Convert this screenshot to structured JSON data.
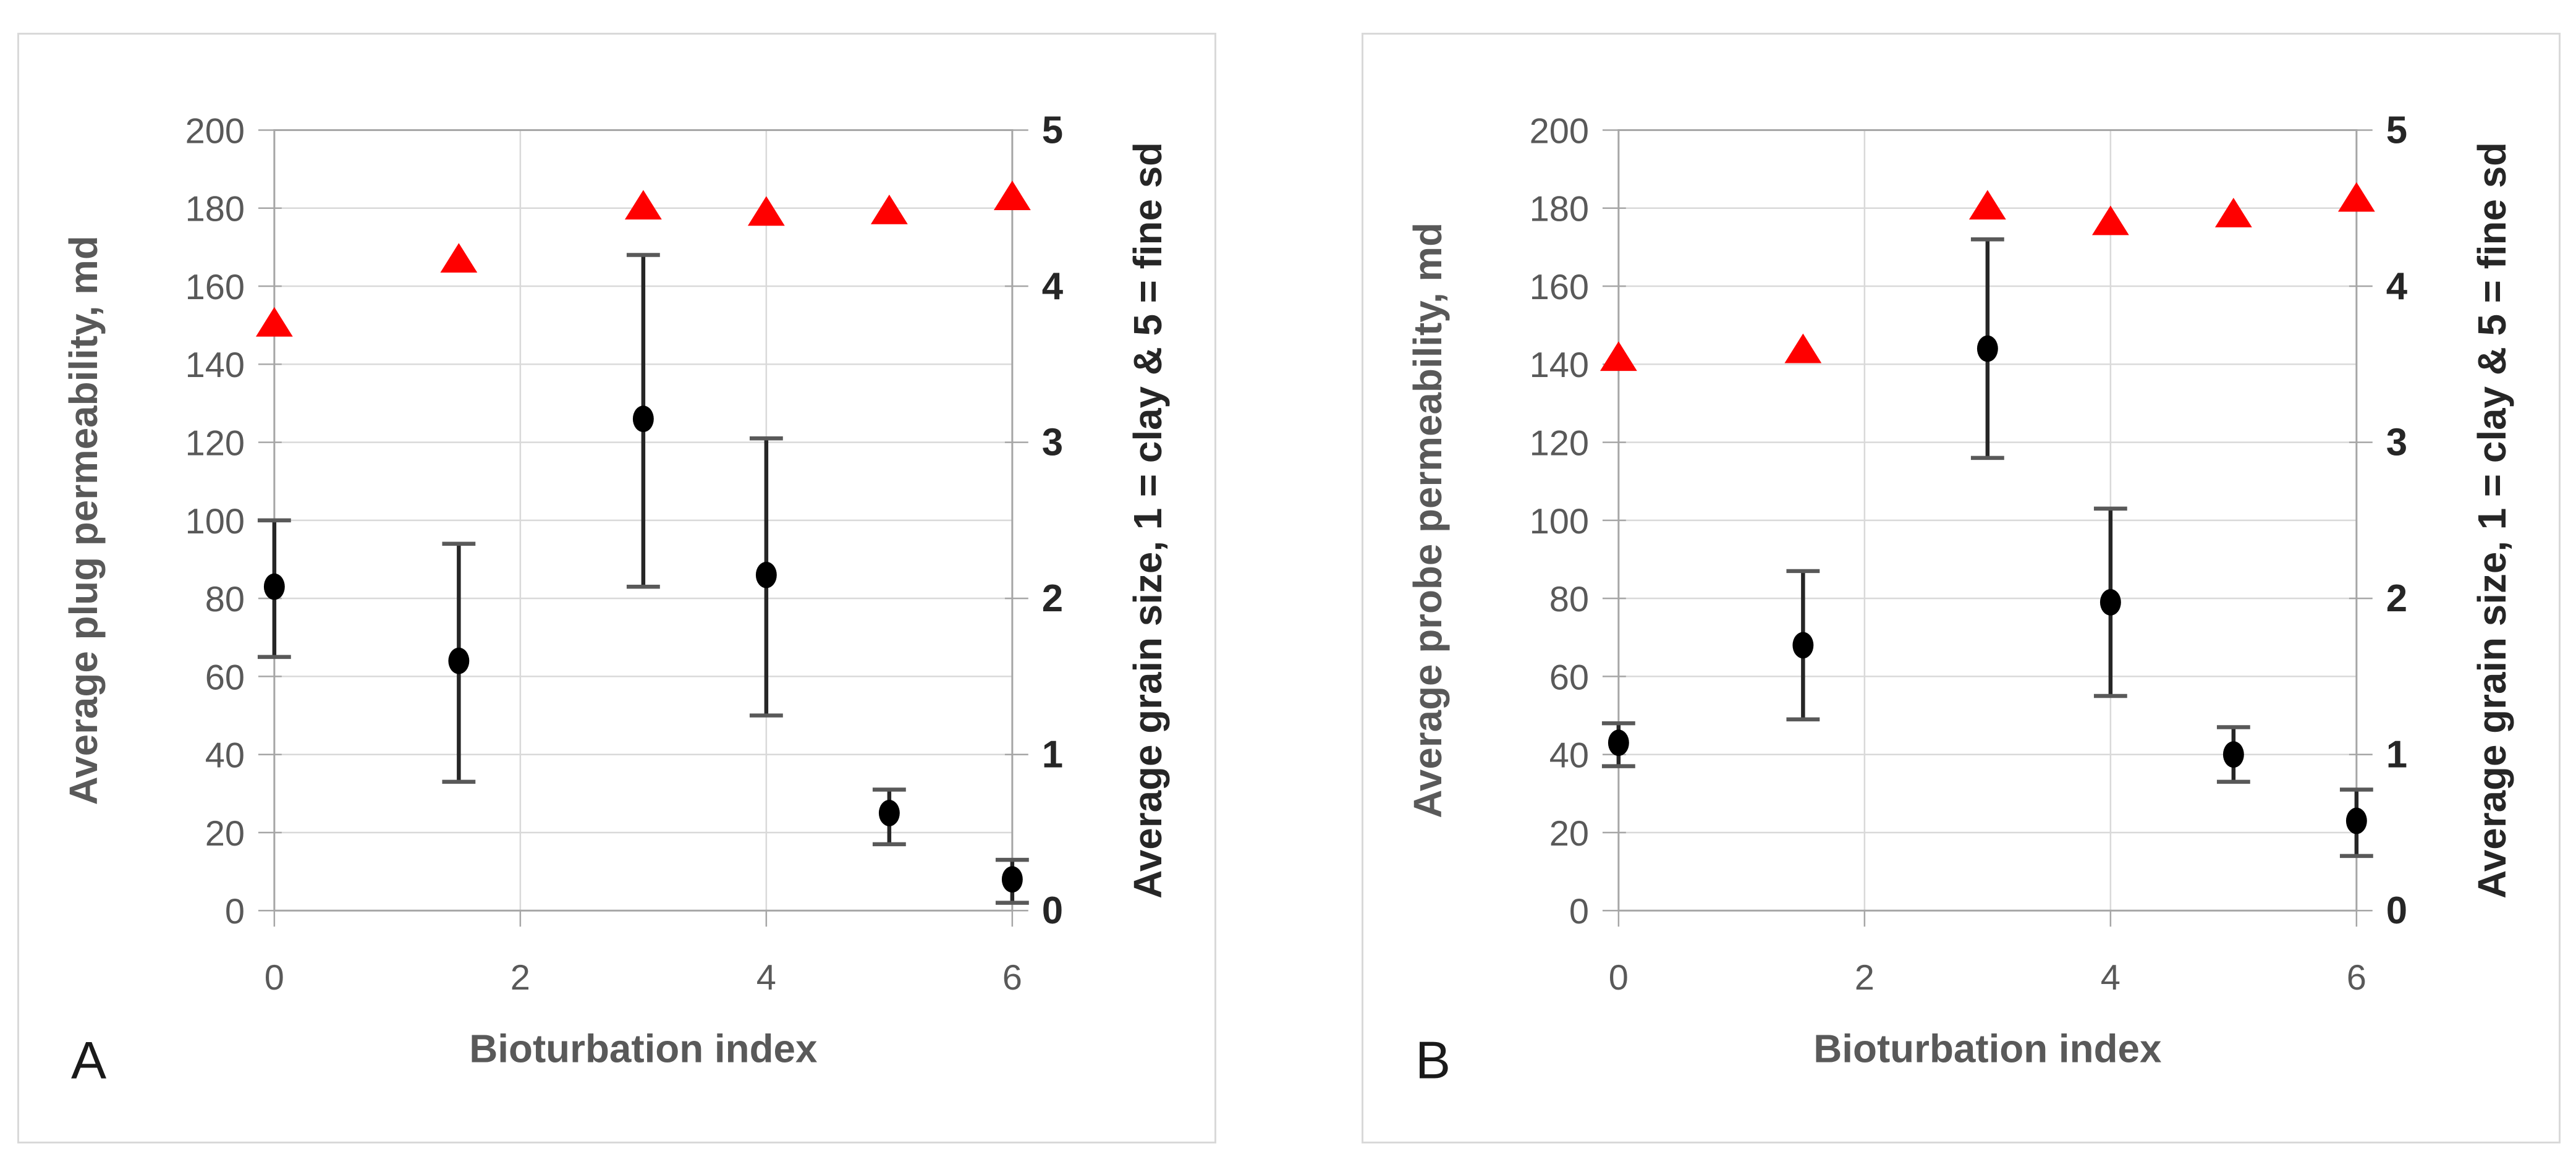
{
  "figure": {
    "background": "#ffffff",
    "panel_border_color": "#d9d9d9",
    "grid_color": "#d9d9d9",
    "axis_line_color": "#a6a6a6",
    "tick_label_color": "#595959",
    "axis_title_color": "#595959",
    "right_axis_text_color": "#262626",
    "marker_color": "#000000",
    "error_bar_color": "#262626",
    "error_cap_color": "#595959",
    "triangle_color": "#ff0000",
    "panel_letter_color": "#1a1a1a"
  },
  "chart_data": [
    {
      "panel_letter": "A",
      "type": "scatter",
      "title": "",
      "xlabel": "Bioturbation index",
      "ylabel_left": "Average plug permeability, md",
      "ylabel_right": "Average grain size, 1 = clay & 5 = fine sd",
      "xlim": [
        0,
        6
      ],
      "x_ticks": [
        0,
        2,
        4,
        6
      ],
      "ylim_left": [
        0,
        200
      ],
      "y_ticks_left": [
        0,
        20,
        40,
        60,
        80,
        100,
        120,
        140,
        160,
        180,
        200
      ],
      "ylim_right": [
        0,
        5
      ],
      "y_ticks_right": [
        0,
        1,
        2,
        3,
        4,
        5
      ],
      "grid": "horizontal every 20 (left axis), vertical at x ticks",
      "legend": "none",
      "series": [
        {
          "name": "Average plug permeability",
          "axis": "left",
          "marker": "circle",
          "color": "#000000",
          "x": [
            0,
            1.5,
            3,
            4,
            5,
            6
          ],
          "y": [
            83,
            64,
            126,
            86,
            25,
            8
          ],
          "err_low": [
            65,
            33,
            83,
            50,
            17,
            2
          ],
          "err_high": [
            100,
            94,
            168,
            121,
            31,
            13
          ]
        },
        {
          "name": "Average grain size",
          "axis": "right",
          "marker": "triangle",
          "color": "#ff0000",
          "x": [
            0,
            1.5,
            3,
            4,
            5,
            6
          ],
          "y": [
            3.76,
            4.17,
            4.51,
            4.47,
            4.48,
            4.57
          ]
        }
      ]
    },
    {
      "panel_letter": "B",
      "type": "scatter",
      "title": "",
      "xlabel": "Bioturbation index",
      "ylabel_left": "Average probe permeability, md",
      "ylabel_right": "Average grain size, 1 = clay & 5 = fine sd",
      "xlim": [
        0,
        6
      ],
      "x_ticks": [
        0,
        2,
        4,
        6
      ],
      "ylim_left": [
        0,
        200
      ],
      "y_ticks_left": [
        0,
        20,
        40,
        60,
        80,
        100,
        120,
        140,
        160,
        180,
        200
      ],
      "ylim_right": [
        0,
        5
      ],
      "y_ticks_right": [
        0,
        1,
        2,
        3,
        4,
        5
      ],
      "grid": "horizontal every 20 (left axis), vertical at x ticks",
      "legend": "none",
      "series": [
        {
          "name": "Average probe permeability",
          "axis": "left",
          "marker": "circle",
          "color": "#000000",
          "x": [
            0,
            1.5,
            3,
            4,
            5,
            6
          ],
          "y": [
            43,
            68,
            144,
            79,
            40,
            23
          ],
          "err_low": [
            37,
            49,
            116,
            55,
            33,
            14
          ],
          "err_high": [
            48,
            87,
            172,
            103,
            47,
            31
          ]
        },
        {
          "name": "Average grain size",
          "axis": "right",
          "marker": "triangle",
          "color": "#ff0000",
          "x": [
            0,
            1.5,
            3,
            4,
            5,
            6
          ],
          "y": [
            3.54,
            3.59,
            4.51,
            4.41,
            4.46,
            4.56
          ]
        }
      ]
    }
  ]
}
